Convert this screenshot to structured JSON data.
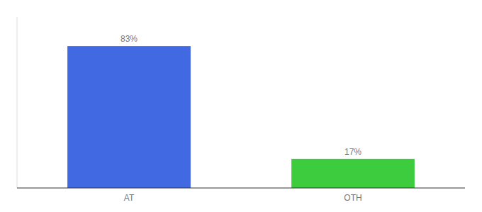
{
  "chart_data": {
    "type": "bar",
    "categories": [
      "AT",
      "OTH"
    ],
    "values": [
      83,
      17
    ],
    "value_labels": [
      "83%",
      "17%"
    ],
    "colors": [
      "#4169e1",
      "#3dcc3d"
    ],
    "ylim": [
      0,
      100
    ],
    "data_labels": true,
    "tick_labels": "x",
    "grid": false
  }
}
